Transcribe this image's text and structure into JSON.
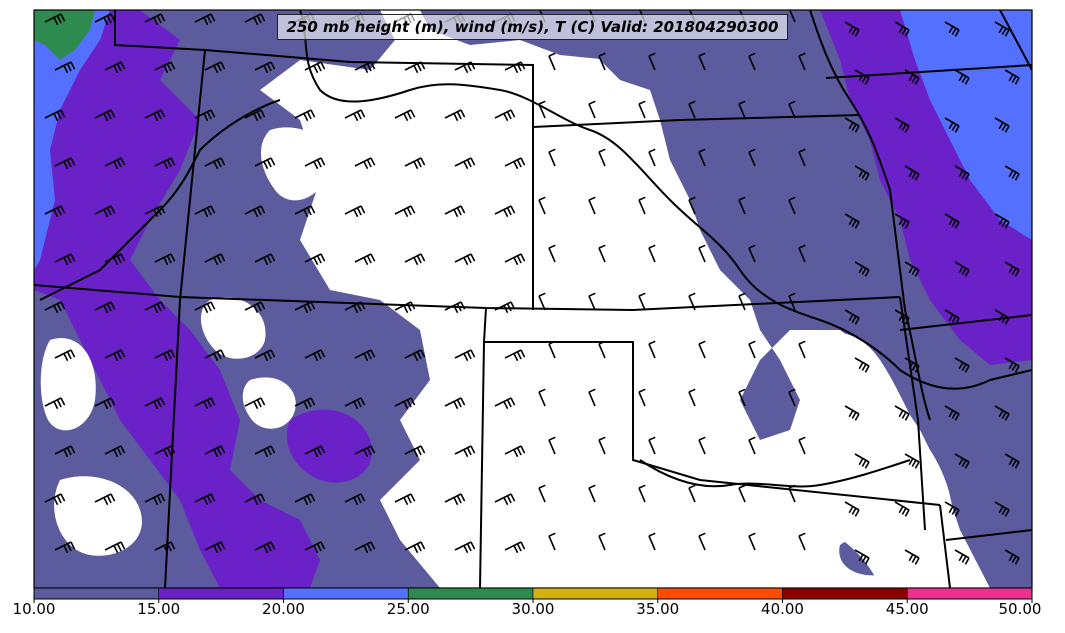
{
  "title": "250 mb height (m), wind (m/s), T (C) Valid: 201804290300",
  "colorbar": {
    "ticks": [
      "10.00",
      "15.00",
      "20.00",
      "25.00",
      "30.00",
      "35.00",
      "40.00",
      "45.00",
      "50.00"
    ],
    "bins": [
      {
        "from": 10,
        "to": 15,
        "color": "#5b5b9d"
      },
      {
        "from": 15,
        "to": 20,
        "color": "#6a22c8"
      },
      {
        "from": 20,
        "to": 25,
        "color": "#5470ff"
      },
      {
        "from": 25,
        "to": 30,
        "color": "#2e8b4f"
      },
      {
        "from": 30,
        "to": 35,
        "color": "#d4b10c"
      },
      {
        "from": 35,
        "to": 40,
        "color": "#ff4d00"
      },
      {
        "from": 40,
        "to": 45,
        "color": "#8b0000"
      },
      {
        "from": 45,
        "to": 50,
        "color": "#f0308f"
      }
    ]
  },
  "colors": {
    "band_10_15": "#5b5b9d",
    "band_15_20": "#6a22c8",
    "band_20_25": "#5470ff",
    "band_25_30": "#2e8b4f",
    "border": "#000000"
  }
}
